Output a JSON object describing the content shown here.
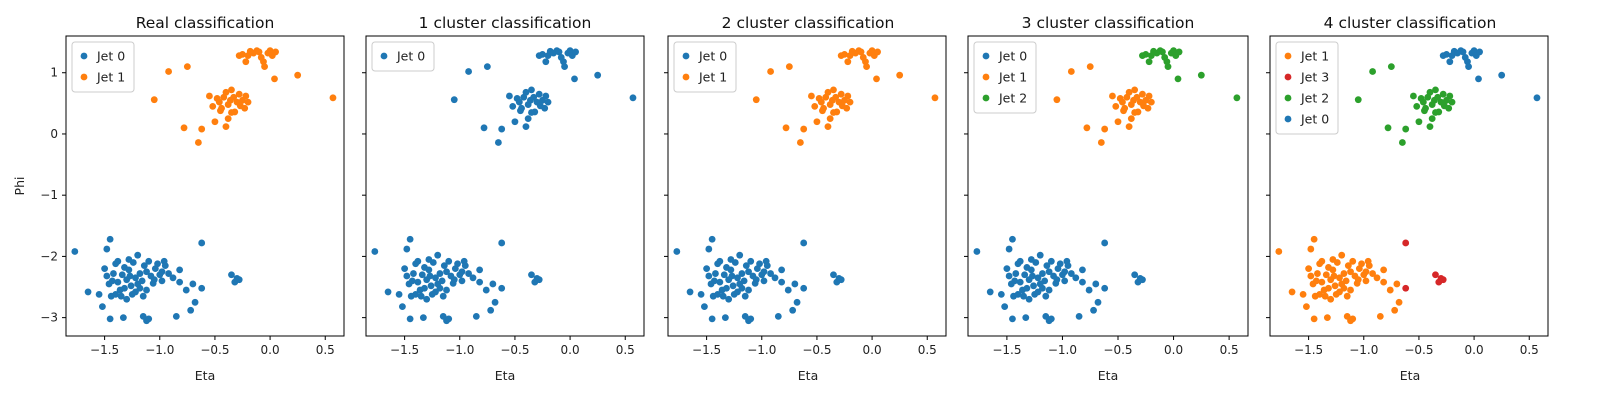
{
  "chart_data": [
    {
      "type": "scatter",
      "title": "Real classification",
      "xlabel": "Eta",
      "ylabel": "Phi",
      "legend": "top-left",
      "series": [
        {
          "name": "Jet 0",
          "cluster": "A",
          "color": "#1f77b4"
        },
        {
          "name": "Jet 1",
          "cluster": "B",
          "color": "#ff7f0e"
        }
      ]
    },
    {
      "type": "scatter",
      "title": "1 cluster classification",
      "xlabel": "Eta",
      "ylabel": "",
      "legend": "top-left",
      "series": [
        {
          "name": "Jet 0",
          "cluster": "ALL",
          "color": "#1f77b4"
        }
      ]
    },
    {
      "type": "scatter",
      "title": "2 cluster classification",
      "xlabel": "Eta",
      "ylabel": "",
      "legend": "top-left",
      "series": [
        {
          "name": "Jet 0",
          "cluster": "A",
          "color": "#1f77b4"
        },
        {
          "name": "Jet 1",
          "cluster": "B",
          "color": "#ff7f0e"
        }
      ]
    },
    {
      "type": "scatter",
      "title": "3 cluster classification",
      "xlabel": "Eta",
      "ylabel": "",
      "legend": "top-left",
      "series": [
        {
          "name": "Jet 0",
          "cluster": "A",
          "color": "#1f77b4"
        },
        {
          "name": "Jet 1",
          "cluster": "B1",
          "color": "#ff7f0e"
        },
        {
          "name": "Jet 2",
          "cluster": "B2",
          "color": "#2ca02c"
        }
      ]
    },
    {
      "type": "scatter",
      "title": "4 cluster classification",
      "xlabel": "Eta",
      "ylabel": "",
      "legend": "top-left",
      "series": [
        {
          "name": "Jet 1",
          "cluster": "A1",
          "color": "#ff7f0e"
        },
        {
          "name": "Jet 3",
          "cluster": "A2",
          "color": "#d62728"
        },
        {
          "name": "Jet 2",
          "cluster": "B",
          "color": "#2ca02c"
        },
        {
          "name": "Jet 0",
          "cluster": "B0",
          "color": "#1f77b4"
        }
      ]
    }
  ],
  "axes": {
    "xlim": [
      -1.85,
      0.67
    ],
    "ylim": [
      -3.3,
      1.6
    ],
    "xticks": [
      -1.5,
      -1.0,
      -0.5,
      0.0,
      0.5
    ],
    "xtick_labels": [
      "−1.5",
      "−1.0",
      "−0.5",
      "0.0",
      "0.5"
    ],
    "yticks": [
      1,
      0,
      -1,
      -2,
      -3
    ],
    "ytick_labels": [
      "1",
      "0",
      "−1",
      "−2",
      "−3"
    ]
  },
  "points": {
    "A": [
      [
        -1.77,
        -1.92
      ],
      [
        -1.65,
        -2.58
      ],
      [
        -1.55,
        -2.62
      ],
      [
        -1.52,
        -2.82
      ],
      [
        -1.48,
        -1.88
      ],
      [
        -1.45,
        -1.72
      ],
      [
        -1.42,
        -2.28
      ],
      [
        -1.4,
        -2.12
      ],
      [
        -1.38,
        -2.42
      ],
      [
        -1.36,
        -2.55
      ],
      [
        -1.34,
        -2.3
      ],
      [
        -1.32,
        -2.18
      ],
      [
        -1.3,
        -2.38
      ],
      [
        -1.28,
        -2.22
      ],
      [
        -1.26,
        -2.48
      ],
      [
        -1.24,
        -2.1
      ],
      [
        -1.22,
        -2.35
      ],
      [
        -1.2,
        -1.98
      ],
      [
        -1.18,
        -2.28
      ],
      [
        -1.16,
        -2.4
      ],
      [
        -1.14,
        -2.15
      ],
      [
        -1.12,
        -2.25
      ],
      [
        -1.1,
        -2.08
      ],
      [
        -1.08,
        -2.32
      ],
      [
        -1.06,
        -2.44
      ],
      [
        -1.04,
        -2.2
      ],
      [
        -1.02,
        -2.12
      ],
      [
        -1.0,
        -2.3
      ],
      [
        -0.98,
        -2.25
      ],
      [
        -0.96,
        -2.08
      ],
      [
        -1.46,
        -2.45
      ],
      [
        -1.44,
        -2.65
      ],
      [
        -1.4,
        -2.62
      ],
      [
        -1.35,
        -2.65
      ],
      [
        -1.32,
        -2.52
      ],
      [
        -1.3,
        -2.7
      ],
      [
        -1.25,
        -2.62
      ],
      [
        -1.22,
        -2.58
      ],
      [
        -1.18,
        -2.52
      ],
      [
        -1.15,
        -2.65
      ],
      [
        -1.12,
        -2.55
      ],
      [
        -1.45,
        -3.02
      ],
      [
        -1.33,
        -3.0
      ],
      [
        -1.12,
        -3.05
      ],
      [
        -1.1,
        -3.02
      ],
      [
        -1.15,
        -2.98
      ],
      [
        -0.85,
        -2.98
      ],
      [
        -0.72,
        -2.88
      ],
      [
        -0.68,
        -2.75
      ],
      [
        -0.92,
        -2.28
      ],
      [
        -0.88,
        -2.35
      ],
      [
        -0.82,
        -2.42
      ],
      [
        -0.76,
        -2.55
      ],
      [
        -0.7,
        -2.45
      ],
      [
        -0.82,
        -2.22
      ],
      [
        -0.95,
        -2.15
      ],
      [
        -1.38,
        -2.08
      ],
      [
        -1.28,
        -2.05
      ],
      [
        -1.48,
        -2.32
      ],
      [
        -1.5,
        -2.2
      ],
      [
        -1.43,
        -2.4
      ],
      [
        -1.2,
        -2.45
      ],
      [
        -1.27,
        -2.32
      ],
      [
        -1.05,
        -2.38
      ],
      [
        -0.98,
        -2.4
      ]
    ],
    "A2": [
      [
        -0.62,
        -1.78
      ],
      [
        -0.62,
        -2.52
      ],
      [
        -0.35,
        -2.3
      ],
      [
        -0.32,
        -2.42
      ],
      [
        -0.3,
        -2.36
      ],
      [
        -0.28,
        -2.38
      ]
    ],
    "B1": [
      [
        -1.05,
        0.56
      ],
      [
        -0.92,
        1.02
      ],
      [
        -0.75,
        1.1
      ],
      [
        -0.78,
        0.1
      ],
      [
        -0.65,
        -0.14
      ],
      [
        -0.62,
        0.08
      ],
      [
        -0.55,
        0.62
      ],
      [
        -0.52,
        0.45
      ],
      [
        -0.5,
        0.2
      ],
      [
        -0.48,
        0.58
      ],
      [
        -0.46,
        0.52
      ],
      [
        -0.44,
        0.42
      ],
      [
        -0.42,
        0.6
      ],
      [
        -0.4,
        0.68
      ],
      [
        -0.38,
        0.48
      ],
      [
        -0.36,
        0.55
      ],
      [
        -0.35,
        0.72
      ],
      [
        -0.33,
        0.6
      ],
      [
        -0.32,
        0.36
      ],
      [
        -0.3,
        0.52
      ],
      [
        -0.28,
        0.65
      ],
      [
        -0.27,
        0.46
      ],
      [
        -0.25,
        0.55
      ],
      [
        -0.23,
        0.42
      ],
      [
        -0.22,
        0.62
      ],
      [
        -0.2,
        0.52
      ],
      [
        -0.4,
        0.12
      ],
      [
        -0.35,
        0.35
      ],
      [
        -0.45,
        0.38
      ],
      [
        -0.38,
        0.25
      ]
    ],
    "B2": [
      [
        -0.28,
        1.28
      ],
      [
        -0.25,
        1.3
      ],
      [
        -0.22,
        1.18
      ],
      [
        -0.2,
        1.28
      ],
      [
        -0.18,
        1.35
      ],
      [
        -0.15,
        1.32
      ],
      [
        -0.12,
        1.36
      ],
      [
        -0.1,
        1.34
      ],
      [
        -0.08,
        1.25
      ],
      [
        -0.06,
        1.18
      ],
      [
        -0.05,
        1.1
      ],
      [
        -0.02,
        1.32
      ],
      [
        0.0,
        1.36
      ],
      [
        0.02,
        1.28
      ],
      [
        0.04,
        0.9
      ],
      [
        0.05,
        1.34
      ],
      [
        0.25,
        0.96
      ],
      [
        0.57,
        0.59
      ]
    ],
    "B0": [
      [
        -0.28,
        1.28
      ],
      [
        -0.25,
        1.3
      ],
      [
        -0.22,
        1.18
      ],
      [
        -0.2,
        1.28
      ],
      [
        -0.18,
        1.35
      ],
      [
        -0.15,
        1.32
      ],
      [
        -0.12,
        1.36
      ],
      [
        -0.1,
        1.34
      ],
      [
        -0.08,
        1.25
      ],
      [
        -0.06,
        1.18
      ],
      [
        -0.05,
        1.1
      ],
      [
        -0.02,
        1.32
      ],
      [
        0.0,
        1.36
      ],
      [
        0.02,
        1.28
      ],
      [
        0.04,
        0.9
      ],
      [
        0.05,
        1.34
      ],
      [
        0.25,
        0.96
      ],
      [
        0.57,
        0.59
      ]
    ]
  }
}
